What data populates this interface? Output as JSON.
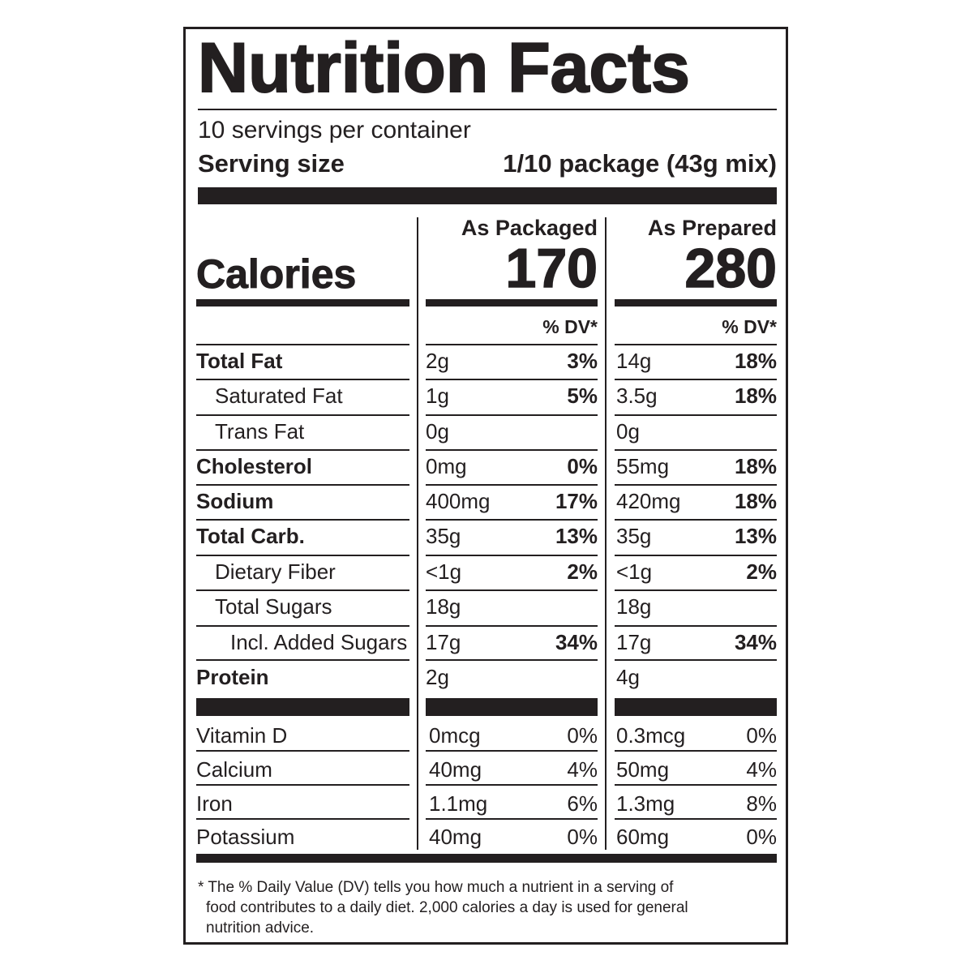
{
  "title": "Nutrition Facts",
  "servings_per_container": "10 servings per container",
  "serving_size_label": "Serving size",
  "serving_size_value": "1/10 package (43g mix)",
  "columns": [
    {
      "heading": "As Packaged",
      "calories": "170",
      "dv_label": "% DV*"
    },
    {
      "heading": "As Prepared",
      "calories": "280",
      "dv_label": "% DV*"
    }
  ],
  "calories_label": "Calories",
  "nutrients": [
    {
      "name": "Total Fat",
      "bold": true,
      "indent": 0,
      "packaged_amount": "2g",
      "packaged_dv": "3%",
      "prepared_amount": "14g",
      "prepared_dv": "18%"
    },
    {
      "name": "Saturated Fat",
      "bold": false,
      "indent": 1,
      "packaged_amount": "1g",
      "packaged_dv": "5%",
      "prepared_amount": "3.5g",
      "prepared_dv": "18%"
    },
    {
      "name": "Trans Fat",
      "bold": false,
      "indent": 1,
      "packaged_amount": "0g",
      "packaged_dv": "",
      "prepared_amount": "0g",
      "prepared_dv": ""
    },
    {
      "name": "Cholesterol",
      "bold": true,
      "indent": 0,
      "packaged_amount": "0mg",
      "packaged_dv": "0%",
      "prepared_amount": "55mg",
      "prepared_dv": "18%"
    },
    {
      "name": "Sodium",
      "bold": true,
      "indent": 0,
      "packaged_amount": "400mg",
      "packaged_dv": "17%",
      "prepared_amount": "420mg",
      "prepared_dv": "18%"
    },
    {
      "name": "Total Carb.",
      "bold": true,
      "indent": 0,
      "packaged_amount": "35g",
      "packaged_dv": "13%",
      "prepared_amount": "35g",
      "prepared_dv": "13%"
    },
    {
      "name": "Dietary Fiber",
      "bold": false,
      "indent": 1,
      "packaged_amount": "<1g",
      "packaged_dv": "2%",
      "prepared_amount": "<1g",
      "prepared_dv": "2%"
    },
    {
      "name": "Total Sugars",
      "bold": false,
      "indent": 1,
      "packaged_amount": "18g",
      "packaged_dv": "",
      "prepared_amount": "18g",
      "prepared_dv": ""
    },
    {
      "name": "Incl. Added Sugars",
      "bold": false,
      "indent": 2,
      "packaged_amount": "17g",
      "packaged_dv": "34%",
      "prepared_amount": "17g",
      "prepared_dv": "34%"
    },
    {
      "name": "Protein",
      "bold": true,
      "indent": 0,
      "packaged_amount": "2g",
      "packaged_dv": "",
      "prepared_amount": "4g",
      "prepared_dv": ""
    }
  ],
  "vitamins": [
    {
      "name": "Vitamin D",
      "packaged_amount": "0mcg",
      "packaged_dv": "0%",
      "prepared_amount": "0.3mcg",
      "prepared_dv": "0%"
    },
    {
      "name": "Calcium",
      "packaged_amount": "40mg",
      "packaged_dv": "4%",
      "prepared_amount": "50mg",
      "prepared_dv": "4%"
    },
    {
      "name": "Iron",
      "packaged_amount": "1.1mg",
      "packaged_dv": "6%",
      "prepared_amount": "1.3mg",
      "prepared_dv": "8%"
    },
    {
      "name": "Potassium",
      "packaged_amount": "40mg",
      "packaged_dv": "0%",
      "prepared_amount": "60mg",
      "prepared_dv": "0%"
    }
  ],
  "footnote_line1": "* The % Daily Value (DV) tells you how much a nutrient in a serving of",
  "footnote_line2": "food contributes to a daily diet. 2,000 calories a day is used for general",
  "footnote_line3": "nutrition advice."
}
